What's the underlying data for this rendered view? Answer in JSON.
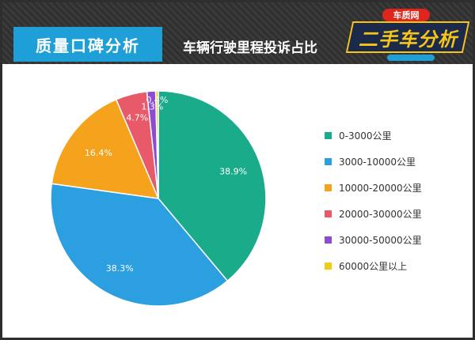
{
  "header": {
    "badge": "质量口碑分析",
    "subtitle": "车辆行驶里程投诉占比",
    "logo_top": "车质网",
    "logo_main": "二手车分析"
  },
  "colors": {
    "teal": "#1aab8a",
    "blue": "#2b9fdf",
    "orange": "#f5a21d",
    "red": "#e85a6a",
    "purple": "#8e4bd0",
    "yellow": "#f0cc17"
  },
  "chart_data": {
    "type": "pie",
    "title": "车辆行驶里程投诉占比",
    "legend_position": "right",
    "categories": [
      "0-3000公里",
      "3000-10000公里",
      "10000-20000公里",
      "20000-30000公里",
      "30000-50000公里",
      "60000公里以上"
    ],
    "values": [
      38.9,
      38.3,
      16.4,
      4.7,
      1.3,
      0.4
    ],
    "labels": [
      "38.9%",
      "38.3%",
      "16.4%",
      "4.7%",
      "1.3%",
      "0.4%"
    ],
    "colors": [
      "#1aab8a",
      "#2b9fdf",
      "#f5a21d",
      "#e85a6a",
      "#8e4bd0",
      "#f0cc17"
    ]
  }
}
